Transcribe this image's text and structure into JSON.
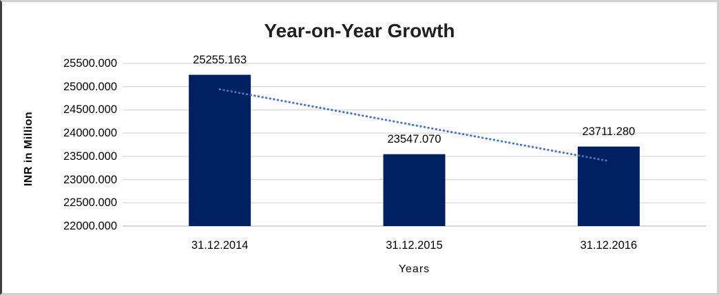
{
  "chart_data": {
    "type": "bar",
    "title": "Year-on-Year Growth",
    "xlabel": "Years",
    "ylabel": "INR in Million",
    "categories": [
      "31.12.2014",
      "31.12.2015",
      "31.12.2016"
    ],
    "values": [
      25255.163,
      23547.07,
      23711.28
    ],
    "data_labels": [
      "25255.163",
      "23547.070",
      "23711.280"
    ],
    "ylim": [
      22000,
      25500
    ],
    "ytick_step": 500,
    "ytick_labels": [
      "25500.000",
      "25000.000",
      "24500.000",
      "24000.000",
      "23500.000",
      "23000.000",
      "22500.000",
      "22000.000"
    ],
    "grid": true,
    "legend": "none",
    "bar_color": "#002060",
    "gridline_color": "#d9d9d9",
    "axis_line_color": "#bfbfbf",
    "trendline": {
      "style": "dotted",
      "color": "#4472C4",
      "start_value": 24943.1,
      "end_value": 23399.2
    }
  }
}
